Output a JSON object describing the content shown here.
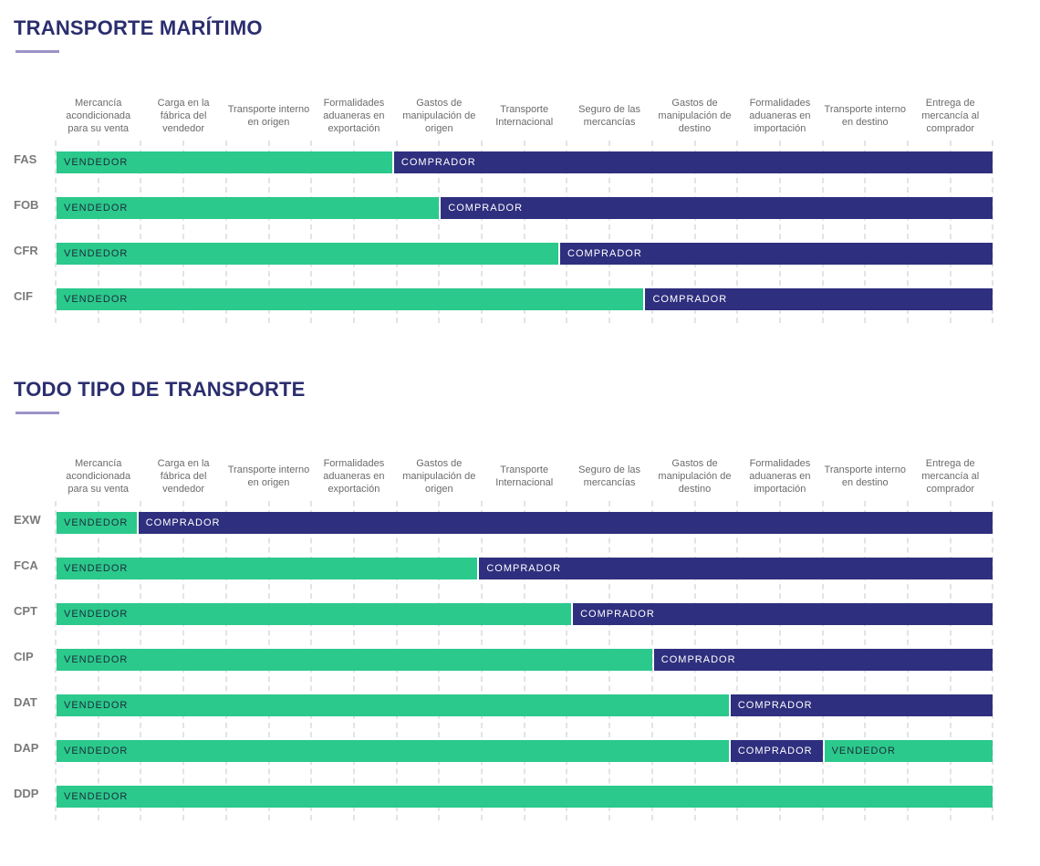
{
  "colors": {
    "vendedor": "#2bc98c",
    "comprador": "#2f2f7f",
    "title": "#2b2e6e"
  },
  "columns": [
    "Mercancía acondicionada para su venta",
    "Carga en la fábrica del vendedor",
    "Transporte interno en origen",
    "Formalidades aduaneras en exportación",
    "Gastos de manipulación de origen",
    "Transporte Internacional",
    "Seguro de las mercancías",
    "Gastos de manipulación de destino",
    "Formalidades aduaneras en importación",
    "Transporte interno en destino",
    "Entrega de mercancía al comprador"
  ],
  "chart_data": [
    {
      "type": "bar",
      "title": "TRANSPORTE MARÍTIMO",
      "x_range": [
        0,
        11
      ],
      "rows": [
        {
          "label": "FAS",
          "segments": [
            {
              "party": "VENDEDOR",
              "from": 0,
              "to": 3.95
            },
            {
              "party": "COMPRADOR",
              "from": 3.95,
              "to": 11
            }
          ]
        },
        {
          "label": "FOB",
          "segments": [
            {
              "party": "VENDEDOR",
              "from": 0,
              "to": 4.5
            },
            {
              "party": "COMPRADOR",
              "from": 4.5,
              "to": 11
            }
          ]
        },
        {
          "label": "CFR",
          "segments": [
            {
              "party": "VENDEDOR",
              "from": 0,
              "to": 5.9
            },
            {
              "party": "COMPRADOR",
              "from": 5.9,
              "to": 11
            }
          ]
        },
        {
          "label": "CIF",
          "segments": [
            {
              "party": "VENDEDOR",
              "from": 0,
              "to": 6.9
            },
            {
              "party": "COMPRADOR",
              "from": 6.9,
              "to": 11
            }
          ]
        }
      ]
    },
    {
      "type": "bar",
      "title": "TODO TIPO DE TRANSPORTE",
      "x_range": [
        0,
        11
      ],
      "rows": [
        {
          "label": "EXW",
          "segments": [
            {
              "party": "VENDEDOR",
              "from": 0,
              "to": 0.95
            },
            {
              "party": "COMPRADOR",
              "from": 0.95,
              "to": 11
            }
          ]
        },
        {
          "label": "FCA",
          "segments": [
            {
              "party": "VENDEDOR",
              "from": 0,
              "to": 4.95
            },
            {
              "party": "COMPRADOR",
              "from": 4.95,
              "to": 11
            }
          ]
        },
        {
          "label": "CPT",
          "segments": [
            {
              "party": "VENDEDOR",
              "from": 0,
              "to": 6.05
            },
            {
              "party": "COMPRADOR",
              "from": 6.05,
              "to": 11
            }
          ]
        },
        {
          "label": "CIP",
          "segments": [
            {
              "party": "VENDEDOR",
              "from": 0,
              "to": 7.0
            },
            {
              "party": "COMPRADOR",
              "from": 7.0,
              "to": 11
            }
          ]
        },
        {
          "label": "DAT",
          "segments": [
            {
              "party": "VENDEDOR",
              "from": 0,
              "to": 7.9
            },
            {
              "party": "COMPRADOR",
              "from": 7.9,
              "to": 11
            }
          ]
        },
        {
          "label": "DAP",
          "segments": [
            {
              "party": "VENDEDOR",
              "from": 0,
              "to": 7.9
            },
            {
              "party": "COMPRADOR",
              "from": 7.9,
              "to": 9.0
            },
            {
              "party": "VENDEDOR",
              "from": 9.0,
              "to": 11
            }
          ]
        },
        {
          "label": "DDP",
          "segments": [
            {
              "party": "VENDEDOR",
              "from": 0,
              "to": 11
            }
          ]
        }
      ]
    }
  ]
}
